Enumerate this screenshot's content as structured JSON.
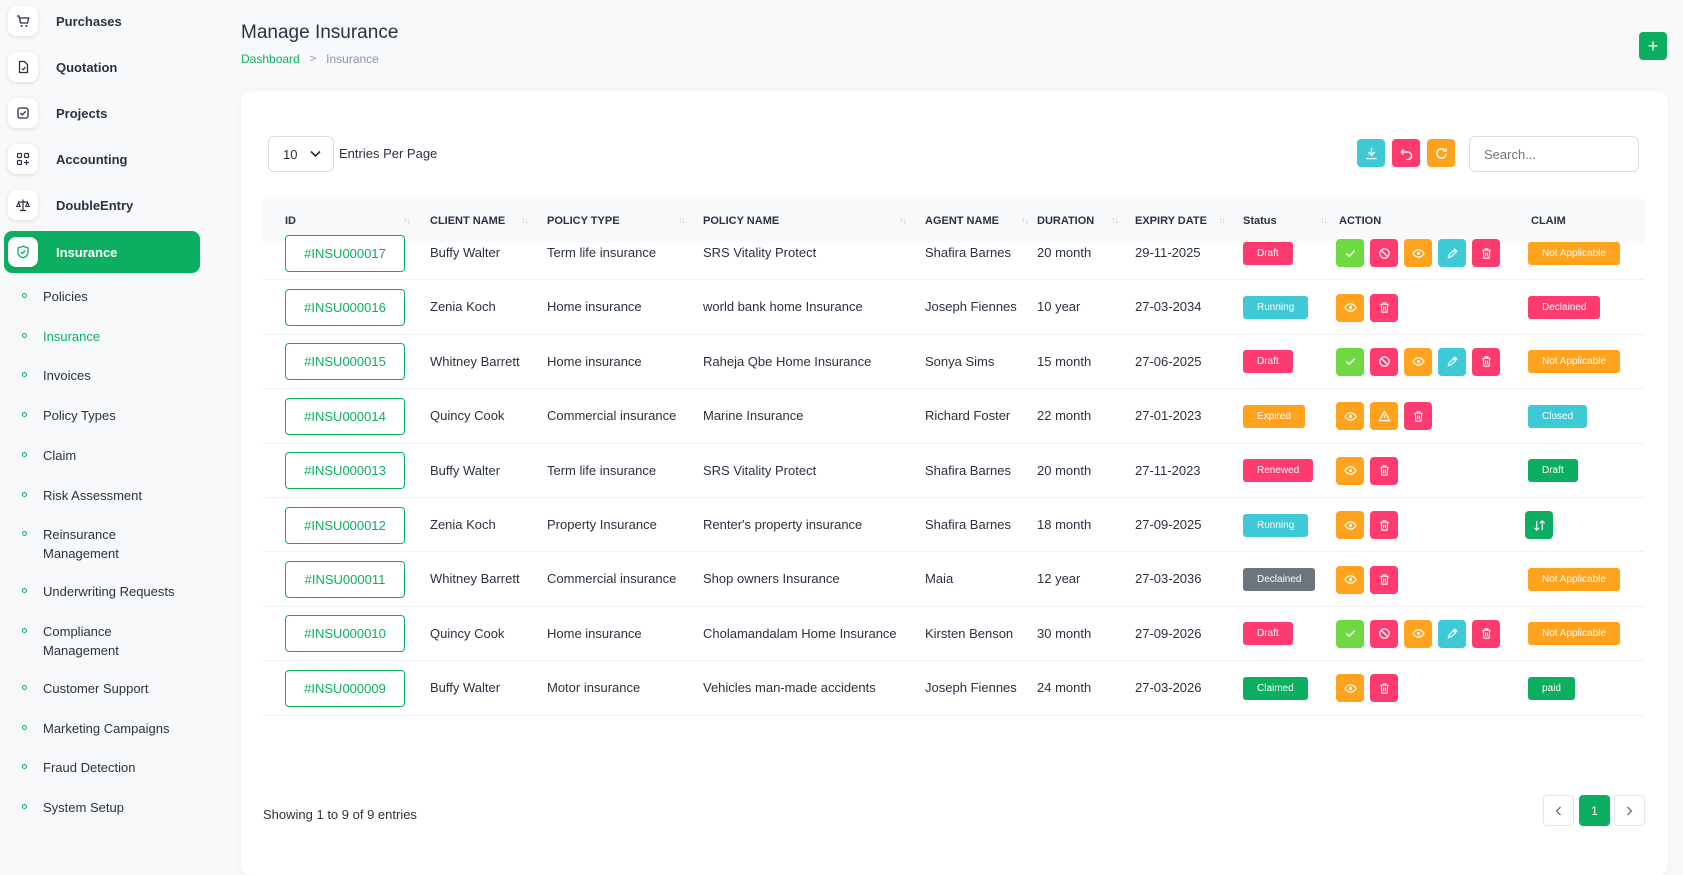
{
  "sidebar": {
    "main_items": [
      {
        "label": "Purchases",
        "icon": "cart-icon",
        "chevron": true
      },
      {
        "label": "Quotation",
        "icon": "file-icon",
        "chevron": false
      },
      {
        "label": "Projects",
        "icon": "checkbox-icon",
        "chevron": true
      },
      {
        "label": "Accounting",
        "icon": "grid-plus-icon",
        "chevron": true
      },
      {
        "label": "DoubleEntry",
        "icon": "scale-icon",
        "chevron": true
      },
      {
        "label": "Insurance",
        "icon": "shield-icon",
        "chevron": true,
        "active": true
      }
    ],
    "sub_items": [
      {
        "label": "Policies"
      },
      {
        "label": "Insurance",
        "current": true
      },
      {
        "label": "Invoices"
      },
      {
        "label": "Policy Types"
      },
      {
        "label": "Claim"
      },
      {
        "label": "Risk Assessment"
      },
      {
        "label": "Reinsurance Management",
        "chevron": true
      },
      {
        "label": "Underwriting Requests"
      },
      {
        "label": "Compliance Management",
        "chevron": true
      },
      {
        "label": "Customer Support"
      },
      {
        "label": "Marketing Campaigns"
      },
      {
        "label": "Fraud Detection"
      },
      {
        "label": "System Setup"
      }
    ]
  },
  "header": {
    "title": "Manage Insurance",
    "breadcrumb": [
      "Dashboard",
      "Insurance"
    ],
    "add_label": "+"
  },
  "toolbar": {
    "per_page_value": "10",
    "per_page_label": "Entries Per Page",
    "search_placeholder": "Search..."
  },
  "table": {
    "columns": [
      "ID",
      "CLIENT NAME",
      "POLICY TYPE",
      "POLICY NAME",
      "AGENT NAME",
      "DURATION",
      "EXPIRY DATE",
      "Status",
      "ACTION",
      "CLAIM"
    ],
    "rows": [
      {
        "id": "#INSU000017",
        "client": "Buffy Walter",
        "policy_type": "Term life insurance",
        "policy_name": "SRS Vitality Protect",
        "agent": "Shafira Barnes",
        "duration": "20 month",
        "expiry": "29-11-2025",
        "status": "Draft",
        "actions": [
          "approve",
          "cancel",
          "view",
          "edit",
          "delete"
        ],
        "claim": "Not Applicable"
      },
      {
        "id": "#INSU000016",
        "client": "Zenia Koch",
        "policy_type": "Home insurance",
        "policy_name": "world bank home Insurance",
        "agent": "Joseph Fiennes",
        "duration": "10 year",
        "expiry": "27-03-2034",
        "status": "Running",
        "actions": [
          "view",
          "delete"
        ],
        "claim": "Declained"
      },
      {
        "id": "#INSU000015",
        "client": "Whitney Barrett",
        "policy_type": "Home insurance",
        "policy_name": "Raheja Qbe Home Insurance",
        "agent": "Sonya Sims",
        "duration": "15 month",
        "expiry": "27-06-2025",
        "status": "Draft",
        "actions": [
          "approve",
          "cancel",
          "view",
          "edit",
          "delete"
        ],
        "claim": "Not Applicable"
      },
      {
        "id": "#INSU000014",
        "client": "Quincy Cook",
        "policy_type": "Commercial insurance",
        "policy_name": "Marine Insurance",
        "agent": "Richard Foster",
        "duration": "22 month",
        "expiry": "27-01-2023",
        "status": "Expired",
        "actions": [
          "view",
          "warning",
          "delete"
        ],
        "claim": "Closed"
      },
      {
        "id": "#INSU000013",
        "client": "Buffy Walter",
        "policy_type": "Term life insurance",
        "policy_name": "SRS Vitality Protect",
        "agent": "Shafira Barnes",
        "duration": "20 month",
        "expiry": "27-11-2023",
        "status": "Renewed",
        "actions": [
          "view",
          "delete"
        ],
        "claim": "Draft"
      },
      {
        "id": "#INSU000012",
        "client": "Zenia Koch",
        "policy_type": "Property Insurance",
        "policy_name": "Renter's property insurance",
        "agent": "Shafira Barnes",
        "duration": "18 month",
        "expiry": "27-09-2025",
        "status": "Running",
        "actions": [
          "view",
          "delete"
        ],
        "claim": ""
      },
      {
        "id": "#INSU000011",
        "client": "Whitney Barrett",
        "policy_type": "Commercial insurance",
        "policy_name": "Shop owners Insurance",
        "agent": "Maia",
        "duration": "12 year",
        "expiry": "27-03-2036",
        "status": "Declained",
        "actions": [
          "view",
          "delete"
        ],
        "claim": "Not Applicable"
      },
      {
        "id": "#INSU000010",
        "client": "Quincy Cook",
        "policy_type": "Home insurance",
        "policy_name": "Cholamandalam Home Insurance",
        "agent": "Kirsten Benson",
        "duration": "30 month",
        "expiry": "27-09-2026",
        "status": "Draft",
        "actions": [
          "approve",
          "cancel",
          "view",
          "edit",
          "delete"
        ],
        "claim": "Not Applicable"
      },
      {
        "id": "#INSU000009",
        "client": "Buffy Walter",
        "policy_type": "Motor insurance",
        "policy_name": "Vehicles man-made accidents",
        "agent": "Joseph Fiennes",
        "duration": "24 month",
        "expiry": "27-03-2026",
        "status": "Claimed",
        "actions": [
          "view",
          "delete"
        ],
        "claim": "paid"
      }
    ]
  },
  "footer": {
    "showing": "Showing 1 to 9 of 9 entries",
    "current_page": "1"
  },
  "colors": {
    "primary": "#0caf60",
    "danger": "#ff3a6e",
    "warning": "#ffa21d",
    "info": "#3ec9d6",
    "success": "#6fd943",
    "dark": "#6c757d"
  }
}
